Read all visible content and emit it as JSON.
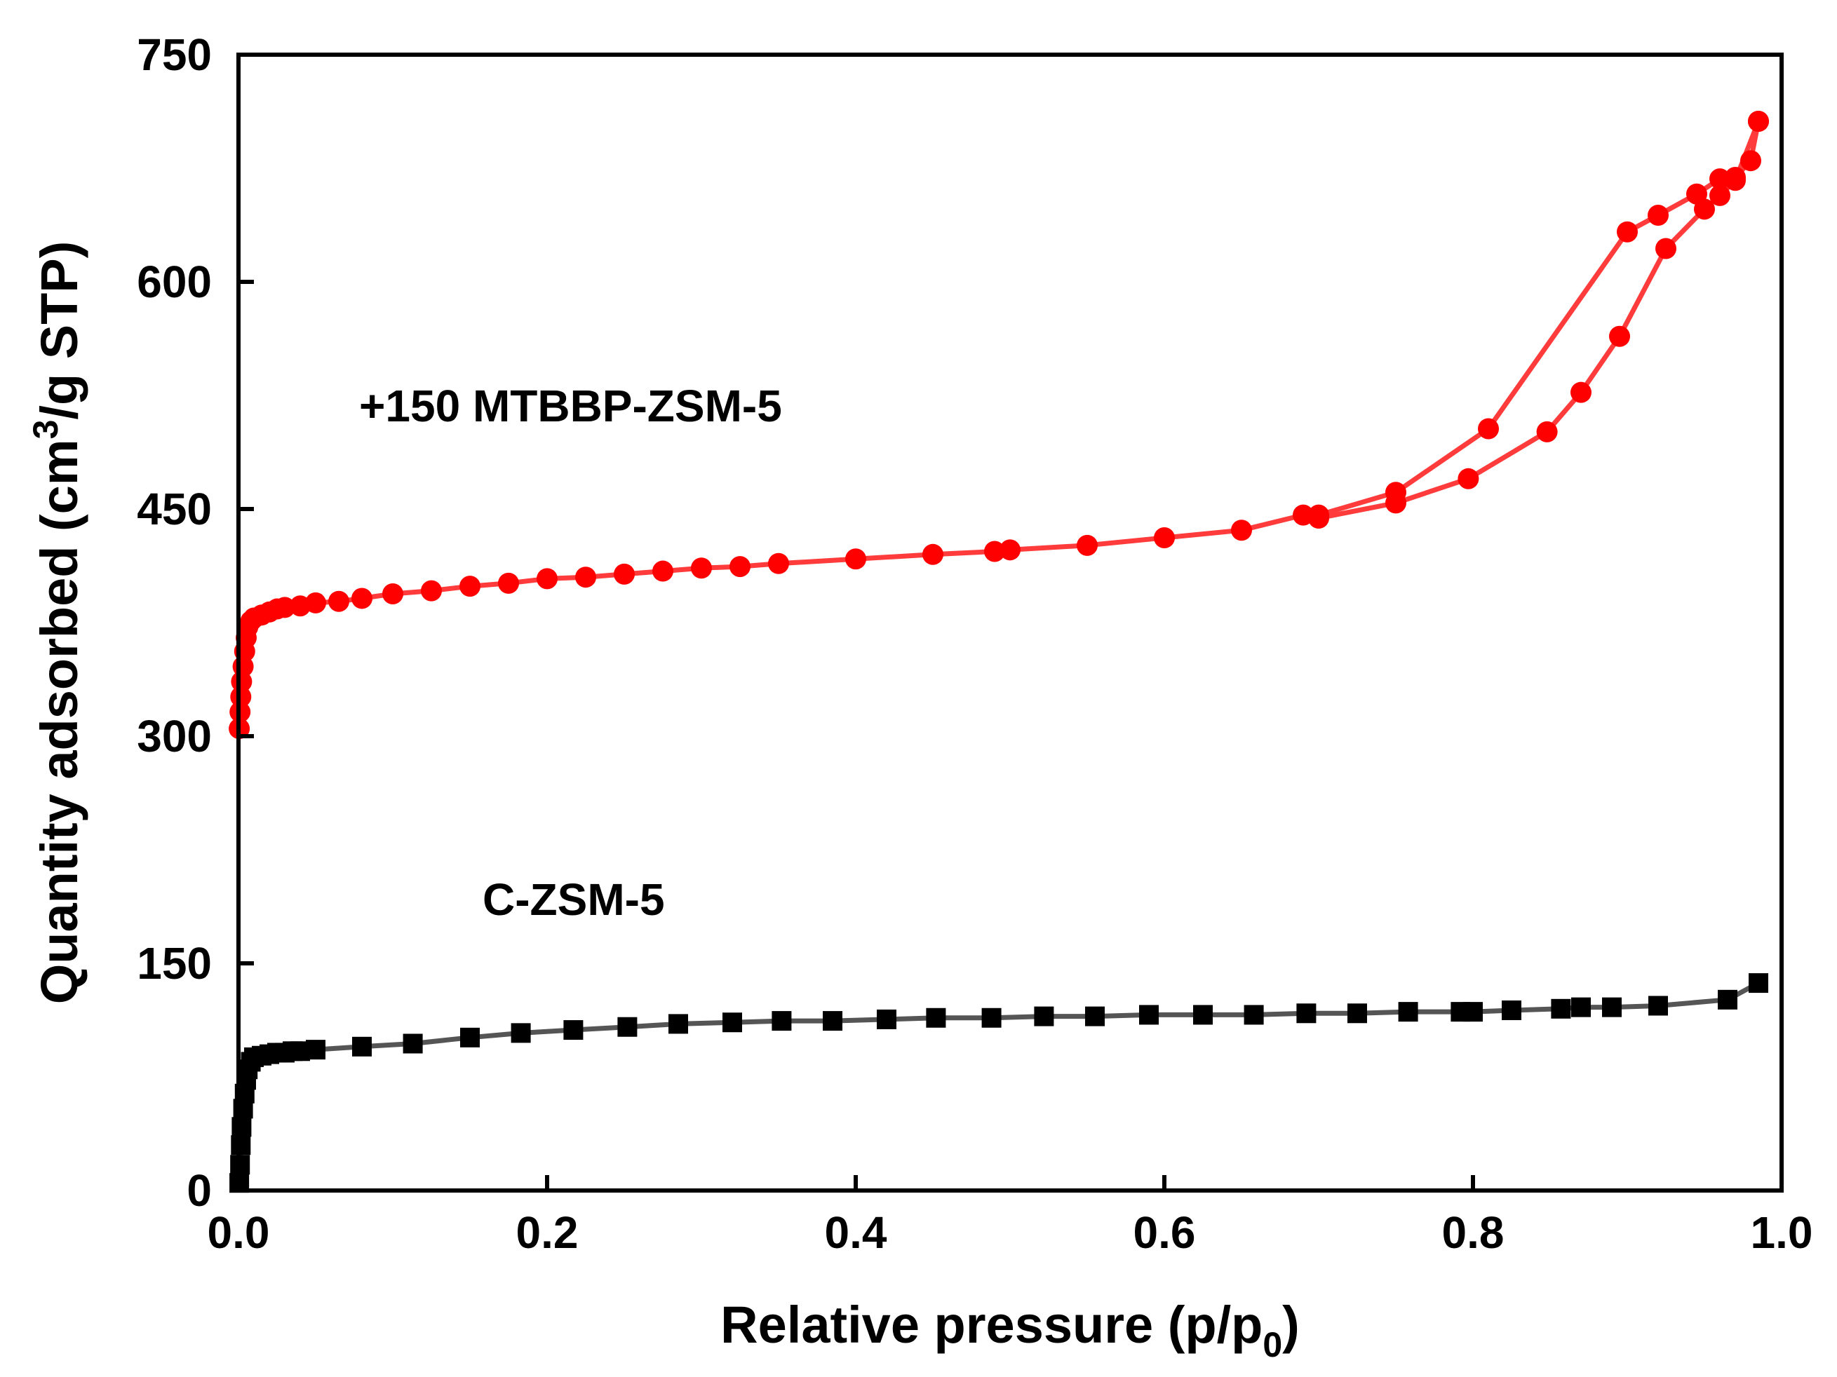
{
  "chart_data": {
    "type": "scatter",
    "xlabel_main": "Relative pressure (p/p",
    "xlabel_sub": "0",
    "xlabel_end": ")",
    "ylabel_main": "Quantity adsorbed (cm",
    "ylabel_sup": "3",
    "ylabel_end": "/g STP)",
    "xlim": [
      0,
      1.0
    ],
    "ylim": [
      0,
      750
    ],
    "xticks": [
      0.0,
      0.2,
      0.4,
      0.6,
      0.8,
      1.0
    ],
    "xtick_labels": [
      "0.0",
      "0.2",
      "0.4",
      "0.6",
      "0.8",
      "1.0"
    ],
    "yticks": [
      0,
      150,
      300,
      450,
      600,
      750
    ],
    "ytick_labels": [
      "0",
      "150",
      "300",
      "450",
      "600",
      "750"
    ],
    "annotations": {
      "mtbbp_label": "+150 MTBBP-ZSM-5",
      "czsm_label": "C-ZSM-5"
    },
    "series": [
      {
        "name": "+150 MTBBP-ZSM-5 adsorption",
        "color": "#ff0000",
        "line_color": "#ff3b3b",
        "marker": "circle",
        "x": [
          0.0005,
          0.001,
          0.0015,
          0.002,
          0.003,
          0.004,
          0.005,
          0.006,
          0.008,
          0.01,
          0.015,
          0.02,
          0.025,
          0.03,
          0.04,
          0.05,
          0.065,
          0.08,
          0.1,
          0.125,
          0.15,
          0.175,
          0.2,
          0.225,
          0.25,
          0.275,
          0.3,
          0.325,
          0.35,
          0.4,
          0.45,
          0.49,
          0.5,
          0.55,
          0.6,
          0.65,
          0.69,
          0.7,
          0.75,
          0.797,
          0.848,
          0.87,
          0.895,
          0.925,
          0.95,
          0.96,
          0.97,
          0.985
        ],
        "y": [
          305,
          316,
          326,
          336,
          346,
          356,
          365,
          372,
          376,
          378,
          380,
          382,
          384,
          385,
          386,
          388,
          389,
          391,
          394,
          396,
          399,
          401,
          404,
          405,
          407,
          409,
          411,
          412,
          414,
          417,
          420,
          422,
          423,
          426,
          431,
          436,
          446,
          444,
          454,
          470,
          501,
          527,
          564,
          622,
          648,
          657,
          667,
          706
        ]
      },
      {
        "name": "+150 MTBBP-ZSM-5 desorption",
        "color": "#ff0000",
        "line_color": "#ff3b3b",
        "marker": "circle",
        "x": [
          0.985,
          0.98,
          0.97,
          0.96,
          0.945,
          0.92,
          0.9,
          0.81,
          0.75,
          0.7
        ],
        "y": [
          706,
          680,
          669,
          668,
          658,
          644,
          633,
          503,
          461,
          446
        ]
      },
      {
        "name": "C-ZSM-5",
        "color": "#000000",
        "line_color": "#555555",
        "marker": "square",
        "x": [
          0.0005,
          0.001,
          0.0015,
          0.002,
          0.003,
          0.004,
          0.005,
          0.006,
          0.008,
          0.01,
          0.015,
          0.02,
          0.025,
          0.03,
          0.035,
          0.04,
          0.05,
          0.08,
          0.113,
          0.15,
          0.183,
          0.217,
          0.252,
          0.285,
          0.32,
          0.352,
          0.385,
          0.42,
          0.452,
          0.488,
          0.522,
          0.555,
          0.59,
          0.625,
          0.658,
          0.692,
          0.725,
          0.758,
          0.792,
          0.8,
          0.825,
          0.857,
          0.87,
          0.89,
          0.92,
          0.965,
          0.985
        ],
        "y": [
          5,
          17,
          30,
          42,
          54,
          64,
          73,
          80,
          85,
          88,
          89,
          90,
          91,
          91,
          92,
          92,
          93,
          95,
          97,
          101,
          104,
          106,
          108,
          110,
          111,
          112,
          112,
          113,
          114,
          114,
          115,
          115,
          116,
          116,
          116,
          117,
          117,
          118,
          118,
          118,
          119,
          120,
          121,
          121,
          122,
          126,
          137
        ]
      }
    ]
  }
}
